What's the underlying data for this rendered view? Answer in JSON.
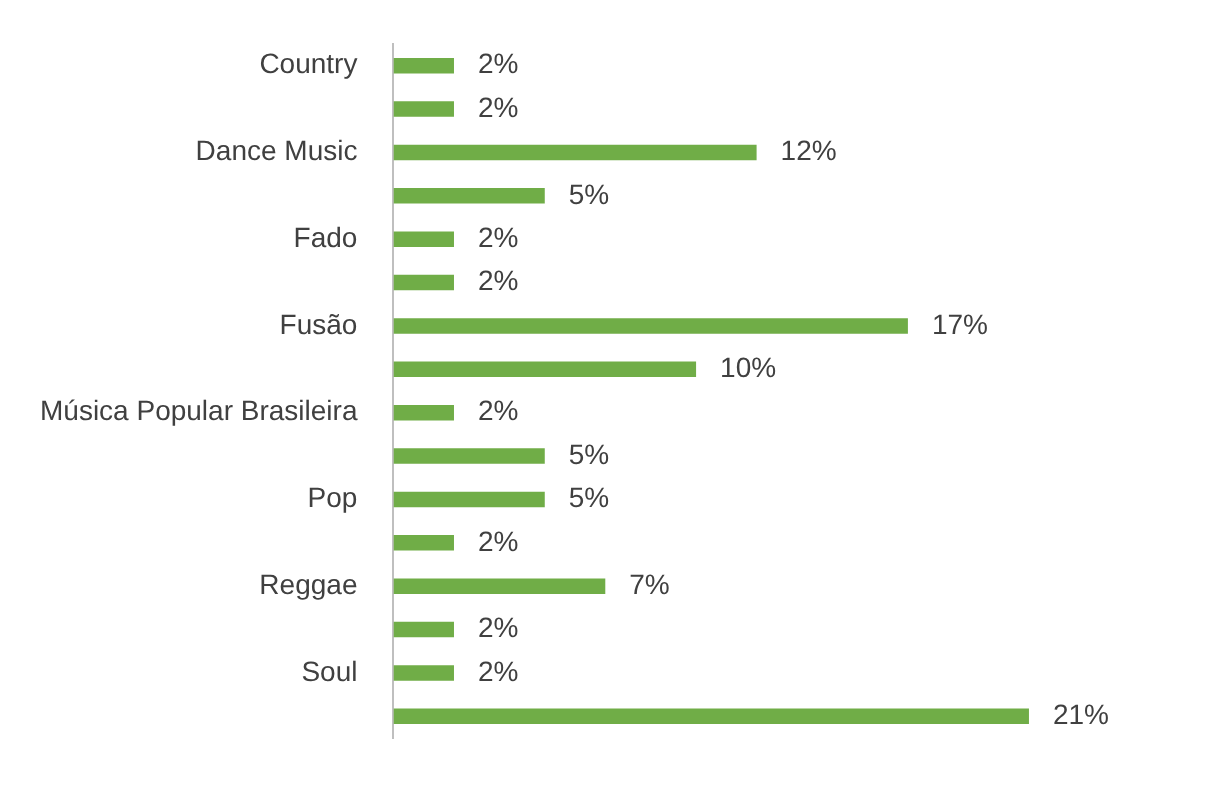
{
  "chart_data": {
    "type": "bar",
    "orientation": "horizontal",
    "categories": [
      "Country",
      null,
      "Dance Music",
      null,
      "Fado",
      null,
      "Fusão",
      null,
      "Música Popular Brasileira",
      null,
      "Pop",
      null,
      "Reggae",
      null,
      "Soul",
      null
    ],
    "values": [
      2,
      2,
      12,
      5,
      2,
      2,
      17,
      10,
      2,
      5,
      5,
      2,
      7,
      2,
      2,
      21
    ],
    "value_labels": [
      "2%",
      "2%",
      "12%",
      "5%",
      "2%",
      "2%",
      "17%",
      "10%",
      "2%",
      "5%",
      "5%",
      "2%",
      "7%",
      "2%",
      "2%",
      "21%"
    ],
    "color": "#70ad47",
    "grid": false,
    "legend": false
  }
}
